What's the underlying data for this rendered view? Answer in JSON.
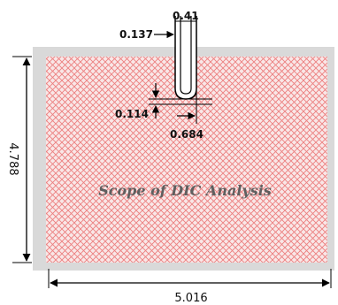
{
  "diagram": {
    "region_label": "Scope of DIC Analysis",
    "dimensions": {
      "slot_width": "0.41",
      "slot_offset": "0.137",
      "tip_offset": "0.114",
      "tip_width": "0.684",
      "height": "4.788",
      "width": "5.016"
    },
    "colors": {
      "specimen_gray": "#d9d9d9",
      "hatch_red": "#ee8888",
      "outline": "#000000"
    }
  }
}
